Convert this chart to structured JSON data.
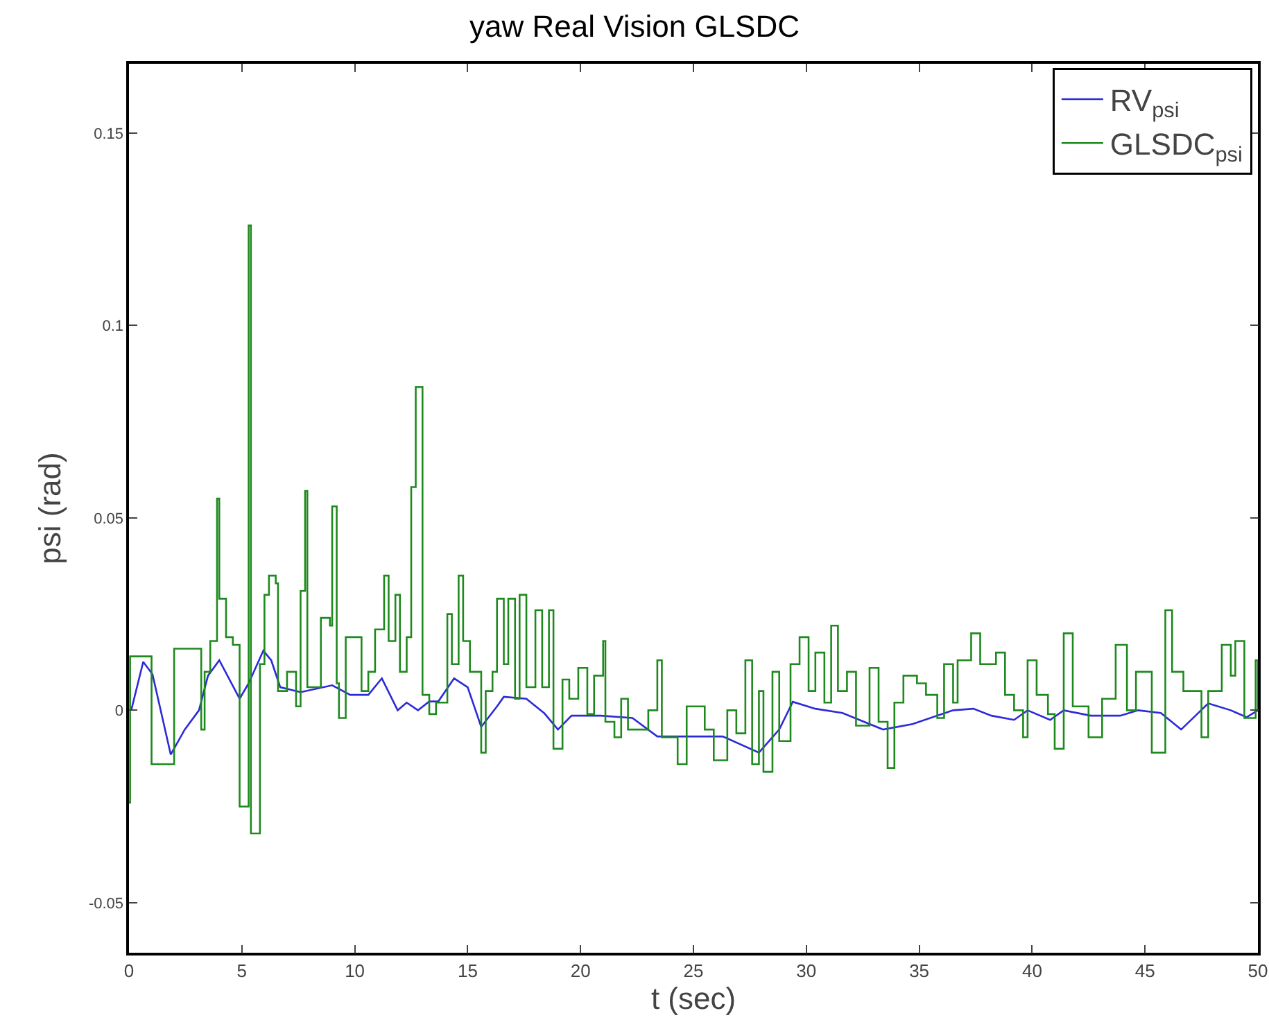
{
  "chart_data": {
    "type": "line",
    "title": "yaw Real Vision GLSDC",
    "xlabel": "t (sec)",
    "ylabel": "psi (rad)",
    "xlim": [
      0,
      50
    ],
    "xticks": [
      0,
      5,
      10,
      15,
      20,
      25,
      30,
      35,
      40,
      45,
      50
    ],
    "ylim": [
      -0.063,
      0.168
    ],
    "yticks": [
      -0.05,
      0,
      0.05,
      0.1,
      0.15
    ],
    "grid": false,
    "legend": "top right",
    "series": [
      {
        "name": "RV$_{psi}$",
        "color": "#2b2bd9",
        "x": [
          0.1,
          0.63,
          1.04,
          1.85,
          2.47,
          3.1,
          3.5,
          4.0,
          4.9,
          5.3,
          5.95,
          6.3,
          6.7,
          7.6,
          9.0,
          9.8,
          10.6,
          11.2,
          11.9,
          12.3,
          12.8,
          13.3,
          13.7,
          14.4,
          15.0,
          15.6,
          16.3,
          16.6,
          17.6,
          18.4,
          19.0,
          19.6,
          20.9,
          22.3,
          23.4,
          26.3,
          27.9,
          28.8,
          29.4,
          30.4,
          31.6,
          33.4,
          34.7,
          36.5,
          37.4,
          38.2,
          39.2,
          39.8,
          40.8,
          41.4,
          42.6,
          43.9,
          44.7,
          45.7,
          46.6,
          47.8,
          48.8,
          49.5,
          50
        ],
        "values": [
          0,
          0.0126,
          0.0094,
          -0.0115,
          -0.005,
          0,
          0.009,
          0.013,
          0.003,
          0.007,
          0.0155,
          0.013,
          0.006,
          0.0047,
          0.0065,
          0.004,
          0.004,
          0.0083,
          0,
          0.002,
          0,
          0.0023,
          0.0023,
          0.0083,
          0.006,
          -0.0043,
          0.001,
          0.0035,
          0.003,
          -0.0008,
          -0.005,
          -0.0014,
          -0.0014,
          -0.002,
          -0.0068,
          -0.0068,
          -0.011,
          -0.005,
          0.0022,
          0.0004,
          -0.0007,
          -0.005,
          -0.0036,
          0,
          0.0004,
          -0.0014,
          -0.0025,
          0,
          -0.0025,
          0,
          -0.0014,
          -0.0014,
          0,
          -0.0007,
          -0.005,
          0.0018,
          0,
          -0.0018,
          0
        ]
      },
      {
        "name": "GLSDC$_{psi}$",
        "type": "step",
        "color": "#1e8a1e",
        "x": [
          0,
          0.05,
          1.0,
          2.0,
          3.2,
          3.35,
          3.6,
          3.9,
          4.0,
          4.3,
          4.6,
          4.9,
          5.3,
          5.4,
          5.8,
          6.0,
          6.2,
          6.5,
          6.6,
          7.0,
          7.4,
          7.6,
          7.8,
          7.9,
          8.5,
          8.9,
          9.0,
          9.2,
          9.3,
          9.6,
          10.3,
          10.6,
          10.9,
          11.3,
          11.5,
          11.8,
          12.0,
          12.3,
          12.5,
          12.7,
          13.0,
          13.3,
          13.6,
          14.1,
          14.3,
          14.6,
          14.8,
          15.1,
          15.6,
          15.8,
          16.1,
          16.3,
          16.6,
          16.8,
          17.1,
          17.3,
          17.6,
          18.0,
          18.3,
          18.6,
          18.8,
          19.2,
          19.5,
          19.9,
          20.3,
          20.6,
          21.0,
          21.1,
          21.5,
          21.8,
          22.1,
          23.0,
          23.4,
          23.6,
          24.3,
          24.7,
          25.5,
          25.9,
          26.5,
          26.9,
          27.3,
          27.6,
          27.9,
          28.1,
          28.5,
          28.8,
          29.3,
          29.7,
          30.1,
          30.4,
          30.8,
          31.1,
          31.4,
          31.8,
          32.2,
          32.8,
          33.2,
          33.6,
          33.9,
          34.3,
          34.9,
          35.3,
          35.8,
          36.1,
          36.5,
          36.7,
          37.3,
          37.7,
          38.4,
          38.8,
          39.2,
          39.6,
          39.8,
          40.2,
          40.7,
          41.0,
          41.4,
          41.8,
          42.5,
          43.1,
          43.7,
          44.2,
          44.6,
          45.3,
          45.9,
          46.2,
          46.7,
          47.5,
          47.8,
          48.4,
          48.8,
          49.0,
          49.4,
          49.9,
          50
        ],
        "values": [
          -0.024,
          0.014,
          -0.014,
          0.016,
          -0.005,
          0.01,
          0.018,
          0.055,
          0.029,
          0.019,
          0.017,
          -0.025,
          0.126,
          -0.032,
          0.012,
          0.03,
          0.035,
          0.033,
          0.005,
          0.01,
          0.001,
          0.031,
          0.057,
          0.006,
          0.024,
          0.022,
          0.053,
          0.007,
          -0.002,
          0.019,
          0.005,
          0.01,
          0.021,
          0.035,
          0.018,
          0.03,
          0.01,
          0.019,
          0.058,
          0.084,
          0.004,
          -0.001,
          0.002,
          0.025,
          0.012,
          0.035,
          0.018,
          0.01,
          -0.011,
          0.005,
          0.01,
          0.029,
          0.012,
          0.029,
          0.003,
          0.03,
          0.006,
          0.026,
          0.006,
          0.026,
          -0.01,
          0.008,
          0.003,
          0.011,
          -0.001,
          0.009,
          0.018,
          -0.003,
          -0.007,
          0.003,
          -0.005,
          0.0,
          0.013,
          -0.007,
          -0.014,
          0.001,
          -0.005,
          -0.013,
          0.0,
          -0.006,
          0.013,
          -0.014,
          0.005,
          -0.016,
          0.01,
          -0.008,
          0.012,
          0.019,
          0.005,
          0.015,
          0.002,
          0.022,
          0.005,
          0.01,
          -0.004,
          0.011,
          -0.003,
          -0.015,
          0.002,
          0.009,
          0.007,
          0.004,
          -0.002,
          0.012,
          0.002,
          0.013,
          0.02,
          0.012,
          0.015,
          0.004,
          0.0,
          -0.007,
          0.013,
          0.004,
          -0.001,
          -0.01,
          0.02,
          0.001,
          -0.007,
          0.003,
          0.017,
          0.0,
          0.01,
          -0.011,
          0.026,
          0.01,
          0.005,
          -0.007,
          0.005,
          0.017,
          0.009,
          0.018,
          -0.002,
          0.013,
          0.0
        ]
      }
    ]
  }
}
